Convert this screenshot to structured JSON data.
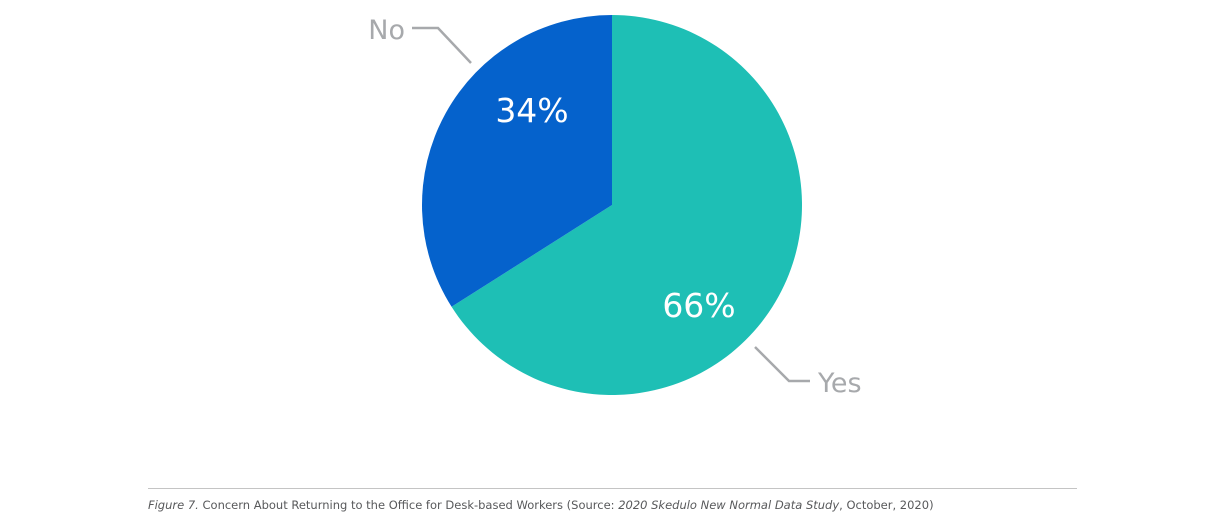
{
  "chart_data": {
    "type": "pie",
    "slices": [
      {
        "category": "Yes",
        "value": 66,
        "value_label": "66%",
        "color": "#1ebfb5"
      },
      {
        "category": "No",
        "value": 34,
        "value_label": "34%",
        "color": "#0562cc"
      }
    ],
    "label_color": "#a7a9ac",
    "start": "12 o'clock, clockwise"
  },
  "caption": {
    "figure_ref": "Figure 7.",
    "text_before": " Concern About Returning to the Office for Desk-based Workers (Source: ",
    "source_title": "2020 Skedulo New Normal Data Study",
    "text_after": ", October, 2020)"
  }
}
